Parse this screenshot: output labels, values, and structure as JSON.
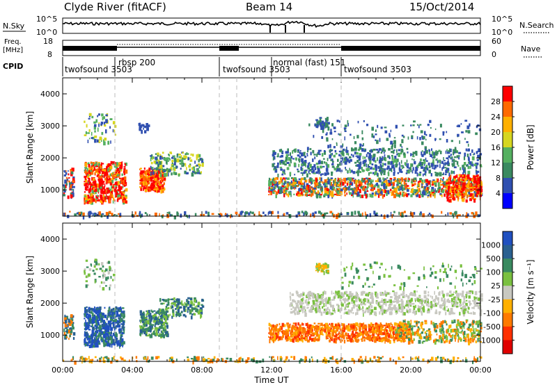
{
  "header": {
    "station": "Clyde River (fitACF)",
    "beam": "Beam 14",
    "date": "15/Oct/2014"
  },
  "summary_panels": {
    "nsky": {
      "label": "N.Sky",
      "right_label": "N.Search",
      "ticks": [
        "10^5",
        "10^0"
      ],
      "right_ticks": [
        "10^5",
        "10^0"
      ]
    },
    "freq": {
      "label_line1": "Freq.",
      "label_line2": "[MHz]",
      "ticks": [
        "18",
        "8"
      ],
      "right_label": "Nave",
      "right_ticks": [
        "60",
        "0"
      ]
    },
    "cpid": {
      "label": "CPID",
      "segments": [
        {
          "name": "twofsound",
          "id": "3503",
          "start": 0
        },
        {
          "name": "rbsp",
          "id": "200",
          "start": 3.0
        },
        {
          "name": "twofsound",
          "id": "3503",
          "start": 9.0
        },
        {
          "name": "normal (fast)",
          "id": "151",
          "start": 12.0
        },
        {
          "name": "twofsound",
          "id": "3503",
          "start": 16.0
        }
      ]
    }
  },
  "chart_data": [
    {
      "type": "heatmap",
      "quantity": "power",
      "ylabel": "Slant Range [km]",
      "ylim": [
        180,
        4500
      ],
      "yticks": [
        "1000",
        "2000",
        "3000",
        "4000"
      ],
      "xlim": [
        0,
        24
      ],
      "xticks": [
        "00:00",
        "04:00",
        "08:00",
        "12:00",
        "16:00",
        "20:00",
        "00:00"
      ],
      "colorbar": {
        "label": "Power [dB]",
        "ticks": [
          "28",
          "24",
          "20",
          "16",
          "12",
          "8",
          "4"
        ],
        "colors": [
          "#ff0000",
          "#ff6a00",
          "#ffb000",
          "#d6d620",
          "#55b060",
          "#3a8a60",
          "#3050b0",
          "#0000ff"
        ]
      },
      "grid": false
    },
    {
      "type": "heatmap",
      "quantity": "velocity",
      "ylabel": "Slant Range [km]",
      "ylim": [
        180,
        4500
      ],
      "yticks": [
        "1000",
        "2000",
        "3000",
        "4000"
      ],
      "xlabel": "Time UT",
      "xlim": [
        0,
        24
      ],
      "xticks": [
        "00:00",
        "04:00",
        "08:00",
        "12:00",
        "16:00",
        "20:00",
        "00:00"
      ],
      "colorbar": {
        "label": "Velocity [m s⁻¹]",
        "ticks": [
          "1000",
          "500",
          "100",
          "25",
          "-25",
          "-100",
          "-500",
          "-1000"
        ],
        "colors": [
          "#2050c0",
          "#2a6090",
          "#3a8a60",
          "#7ac040",
          "#c8c8c0",
          "#ffb000",
          "#ff7a00",
          "#ff3000",
          "#e00000"
        ]
      },
      "grid": false
    }
  ]
}
